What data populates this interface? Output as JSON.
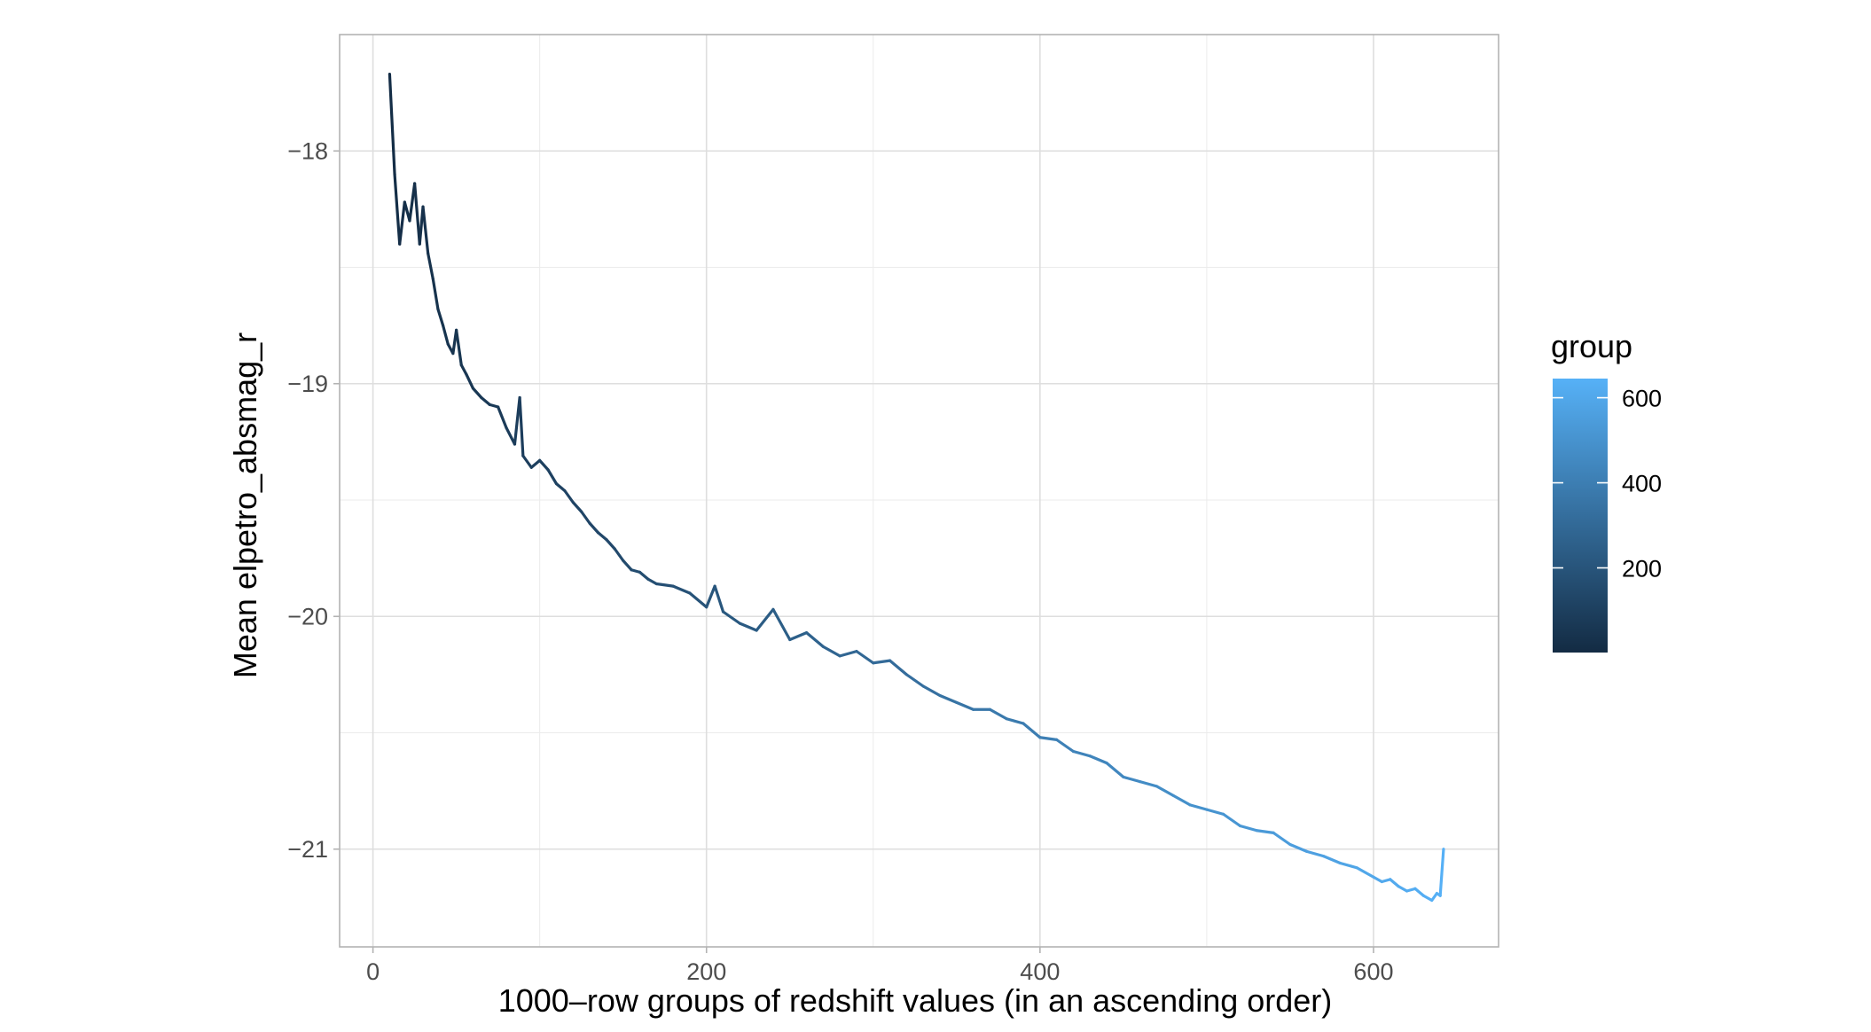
{
  "chart_data": {
    "type": "line",
    "title": "",
    "xlabel": "1000–row groups of redshift values (in an ascending order)",
    "ylabel": "Mean elpetro_absmag_r",
    "xlim": [
      -20,
      675
    ],
    "ylim": [
      -21.42,
      -17.5
    ],
    "x_ticks": [
      0,
      200,
      400,
      600
    ],
    "y_ticks": [
      -18,
      -19,
      -20,
      -21
    ],
    "x_tick_labels": [
      "0",
      "200",
      "400",
      "600"
    ],
    "y_tick_labels": [
      "−18",
      "−19",
      "−20",
      "−21"
    ],
    "grid": true,
    "color_by": "group",
    "color_scale": {
      "low": "#132B43",
      "high": "#56B1F7",
      "min": 1,
      "max": 645
    },
    "legend": {
      "title": "group",
      "position": "right",
      "ticks": [
        200,
        400,
        600
      ],
      "tick_labels": [
        "200",
        "400",
        "600"
      ]
    },
    "series": [
      {
        "x": [
          10,
          13,
          16,
          19,
          22,
          25,
          28,
          30,
          33,
          36,
          39,
          42,
          45,
          48,
          50,
          53,
          56,
          60,
          65,
          70,
          75,
          80,
          85,
          88,
          90,
          95,
          100,
          105,
          110,
          115,
          120,
          125,
          130,
          135,
          140,
          145,
          150,
          155,
          160,
          165,
          170,
          180,
          190,
          200,
          205,
          210,
          220,
          230,
          240,
          250,
          260,
          270,
          280,
          290,
          300,
          310,
          320,
          330,
          340,
          350,
          360,
          370,
          380,
          390,
          400,
          410,
          420,
          430,
          440,
          450,
          460,
          470,
          480,
          490,
          500,
          510,
          520,
          530,
          540,
          550,
          560,
          570,
          580,
          590,
          600,
          605,
          610,
          615,
          620,
          625,
          630,
          635,
          638,
          640,
          642
        ],
        "values": [
          -17.67,
          -18.1,
          -18.4,
          -18.22,
          -18.3,
          -18.14,
          -18.4,
          -18.24,
          -18.44,
          -18.55,
          -18.68,
          -18.75,
          -18.83,
          -18.87,
          -18.77,
          -18.92,
          -18.96,
          -19.02,
          -19.06,
          -19.09,
          -19.1,
          -19.19,
          -19.26,
          -19.06,
          -19.31,
          -19.36,
          -19.33,
          -19.37,
          -19.43,
          -19.46,
          -19.51,
          -19.55,
          -19.6,
          -19.64,
          -19.67,
          -19.71,
          -19.76,
          -19.8,
          -19.81,
          -19.84,
          -19.86,
          -19.87,
          -19.9,
          -19.96,
          -19.87,
          -19.98,
          -20.03,
          -20.06,
          -19.97,
          -20.1,
          -20.07,
          -20.13,
          -20.17,
          -20.15,
          -20.2,
          -20.19,
          -20.25,
          -20.3,
          -20.34,
          -20.37,
          -20.4,
          -20.4,
          -20.44,
          -20.46,
          -20.52,
          -20.53,
          -20.58,
          -20.6,
          -20.63,
          -20.69,
          -20.71,
          -20.73,
          -20.77,
          -20.81,
          -20.83,
          -20.85,
          -20.9,
          -20.92,
          -20.93,
          -20.98,
          -21.01,
          -21.03,
          -21.06,
          -21.08,
          -21.12,
          -21.14,
          -21.13,
          -21.16,
          -21.18,
          -21.17,
          -21.2,
          -21.22,
          -21.19,
          -21.2,
          -21.0
        ]
      }
    ]
  }
}
